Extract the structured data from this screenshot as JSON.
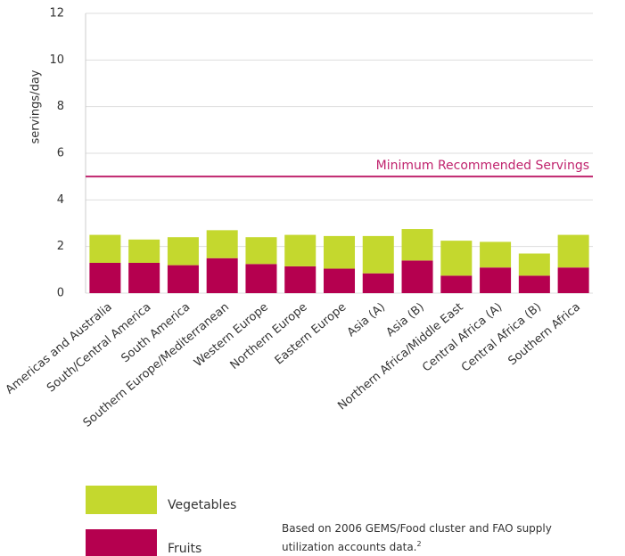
{
  "chart_data": {
    "type": "stacked_bar",
    "ylabel": "servings/day",
    "categories": [
      "Americas and Australia",
      "South/Central America",
      "South America",
      "Southern Europe/Mediterranean",
      "Western Europe",
      "Northern Europe",
      "Eastern Europe",
      "Asia (A)",
      "Asia (B)",
      "Northern Africa/Middle East",
      "Central Africa (A)",
      "Central Africa (B)",
      "Southern Africa"
    ],
    "series": [
      {
        "name": "Fruits",
        "color": "#b5004f",
        "values": [
          1.3,
          1.3,
          1.2,
          1.5,
          1.25,
          1.15,
          1.05,
          0.85,
          1.4,
          0.75,
          1.1,
          0.75,
          1.1
        ]
      },
      {
        "name": "Vegetables",
        "color": "#c4d82e",
        "values": [
          1.2,
          1.0,
          1.2,
          1.2,
          1.15,
          1.35,
          1.4,
          1.6,
          1.35,
          1.5,
          1.1,
          0.95,
          1.4
        ]
      }
    ],
    "ylim": [
      0,
      12
    ],
    "yticks": [
      0,
      2,
      4,
      6,
      8,
      10,
      12
    ],
    "grid": true,
    "reference_line": {
      "value": 5,
      "label": "Minimum Recommended Servings",
      "color": "#c0246e"
    },
    "note": "Based on 2006 GEMS/Food cluster and FAO supply utilization accounts data.",
    "note_ref": "2"
  }
}
